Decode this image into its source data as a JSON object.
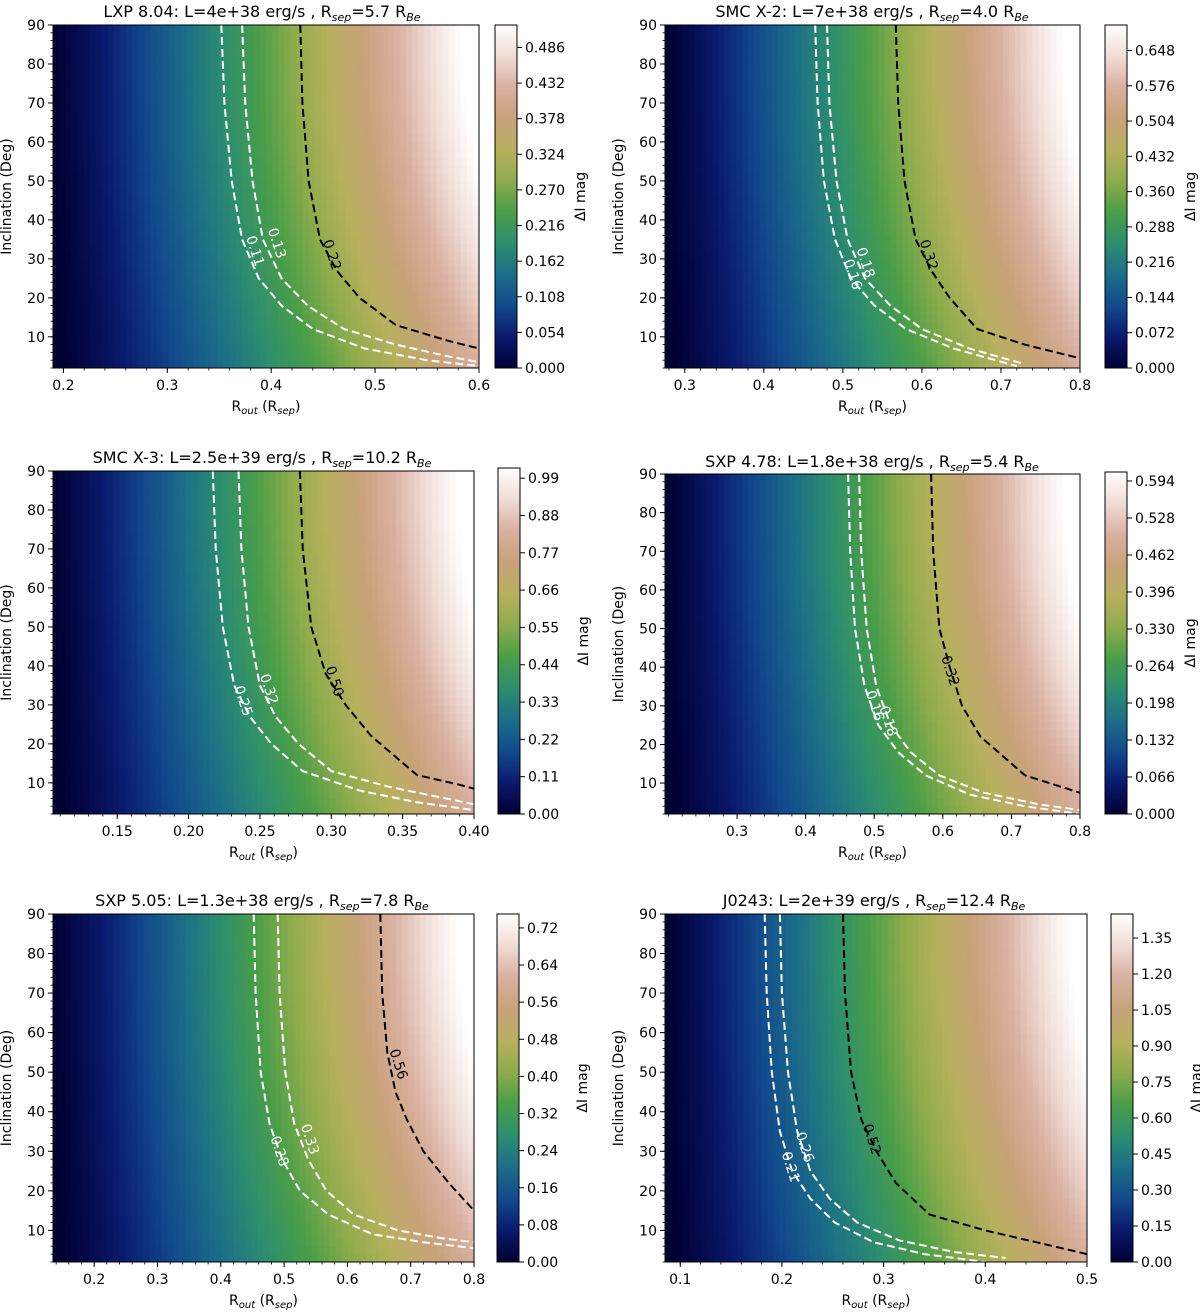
{
  "colorbar_label": "ΔI mag",
  "ylabel": "Inclination (Deg)",
  "xlabel_parts": {
    "main": "R",
    "sub": "out",
    "mid": " (R",
    "sub2": "sep",
    "end": ")"
  },
  "colors": {
    "colormap": [
      "#000033",
      "#0a1a6e",
      "#124a8c",
      "#1c6e88",
      "#2d8e6e",
      "#4a9e48",
      "#8eac4c",
      "#b8b05e",
      "#c8a27a",
      "#d9b0a0",
      "#f0dcd6",
      "#ffffff"
    ],
    "contour_white": "#ffffff",
    "contour_black": "#000000"
  },
  "chart_data": [
    {
      "type": "heatmap",
      "title": {
        "prefix": "LXP 8.04: L=4e+38 erg/s , R",
        "sub1": "sep",
        "mid": "=5.7 R",
        "sub2": "Be"
      },
      "xlim": [
        0.19,
        0.6
      ],
      "ylim": [
        2,
        90
      ],
      "xticks": [
        "0.2",
        "0.3",
        "0.4",
        "0.5",
        "0.6"
      ],
      "yticks": [
        "10",
        "20",
        "30",
        "40",
        "50",
        "60",
        "70",
        "80",
        "90"
      ],
      "zmax": 0.52,
      "cbar_ticks": [
        "0.000",
        "0.054",
        "0.108",
        "0.162",
        "0.216",
        "0.270",
        "0.324",
        "0.378",
        "0.432",
        "0.486"
      ],
      "contours": [
        {
          "label": "0.11",
          "color": "white",
          "x": [
            0.352,
            0.355,
            0.362,
            0.372,
            0.388,
            0.41,
            0.44,
            0.49,
            0.55,
            0.6
          ],
          "y": [
            90,
            70,
            50,
            35,
            25,
            18,
            12,
            7,
            4,
            2.5
          ],
          "label_at": [
            0.384,
            32
          ]
        },
        {
          "label": "0.13",
          "color": "white",
          "x": [
            0.372,
            0.375,
            0.382,
            0.392,
            0.41,
            0.435,
            0.47,
            0.52,
            0.57,
            0.6
          ],
          "y": [
            90,
            70,
            50,
            35,
            25,
            18,
            12,
            8,
            5,
            3.5
          ],
          "label_at": [
            0.405,
            34
          ]
        },
        {
          "label": "0.22",
          "color": "black",
          "x": [
            0.428,
            0.43,
            0.436,
            0.447,
            0.463,
            0.485,
            0.52,
            0.57,
            0.6
          ],
          "y": [
            90,
            70,
            50,
            35,
            27,
            20,
            13,
            9,
            7
          ],
          "label_at": [
            0.458,
            31
          ]
        }
      ]
    },
    {
      "type": "heatmap",
      "title": {
        "prefix": "SMC X-2: L=7e+38 erg/s , R",
        "sub1": "sep",
        "mid": "=4.0 R",
        "sub2": "Be"
      },
      "xlim": [
        0.275,
        0.8
      ],
      "ylim": [
        2,
        90
      ],
      "xticks": [
        "0.3",
        "0.4",
        "0.5",
        "0.6",
        "0.7",
        "0.8"
      ],
      "yticks": [
        "10",
        "20",
        "30",
        "40",
        "50",
        "60",
        "70",
        "80",
        "90"
      ],
      "zmax": 0.7,
      "cbar_ticks": [
        "0.000",
        "0.072",
        "0.144",
        "0.216",
        "0.288",
        "0.360",
        "0.432",
        "0.504",
        "0.576",
        "0.648"
      ],
      "contours": [
        {
          "label": "0.16",
          "color": "white",
          "x": [
            0.465,
            0.468,
            0.476,
            0.49,
            0.51,
            0.54,
            0.58,
            0.64,
            0.72
          ],
          "y": [
            90,
            70,
            50,
            35,
            25,
            18,
            12,
            7,
            2.5
          ],
          "label_at": [
            0.512,
            26
          ]
        },
        {
          "label": "0.18",
          "color": "white",
          "x": [
            0.48,
            0.483,
            0.492,
            0.506,
            0.528,
            0.56,
            0.6,
            0.66,
            0.73
          ],
          "y": [
            90,
            70,
            50,
            35,
            25,
            18,
            12,
            7,
            3
          ],
          "label_at": [
            0.528,
            29
          ]
        },
        {
          "label": "0.32",
          "color": "black",
          "x": [
            0.567,
            0.57,
            0.578,
            0.592,
            0.612,
            0.635,
            0.67,
            0.73,
            0.8
          ],
          "y": [
            90,
            70,
            50,
            35,
            27,
            20,
            12,
            8,
            4.5
          ],
          "label_at": [
            0.608,
            31
          ]
        }
      ]
    },
    {
      "type": "heatmap",
      "title": {
        "prefix": "SMC X-3: L=2.5e+39 erg/s , R",
        "sub1": "sep",
        "mid": "=10.2 R",
        "sub2": "Be"
      },
      "xlim": [
        0.105,
        0.4
      ],
      "ylim": [
        2,
        90
      ],
      "xticks": [
        "0.15",
        "0.20",
        "0.25",
        "0.30",
        "0.35",
        "0.40"
      ],
      "yticks": [
        "10",
        "20",
        "30",
        "40",
        "50",
        "60",
        "70",
        "80",
        "90"
      ],
      "zmax": 1.02,
      "cbar_ticks": [
        "0.00",
        "0.11",
        "0.22",
        "0.33",
        "0.44",
        "0.55",
        "0.66",
        "0.77",
        "0.88",
        "0.99"
      ],
      "contours": [
        {
          "label": "0.25",
          "color": "white",
          "x": [
            0.217,
            0.219,
            0.224,
            0.232,
            0.243,
            0.258,
            0.28,
            0.32,
            0.36,
            0.4
          ],
          "y": [
            90,
            70,
            50,
            35,
            27,
            20,
            13,
            8,
            5,
            3
          ],
          "label_at": [
            0.238,
            31
          ]
        },
        {
          "label": "0.32",
          "color": "white",
          "x": [
            0.235,
            0.237,
            0.242,
            0.25,
            0.261,
            0.277,
            0.3,
            0.34,
            0.38,
            0.4
          ],
          "y": [
            90,
            70,
            50,
            35,
            27,
            20,
            13,
            9,
            6,
            4.5
          ],
          "label_at": [
            0.256,
            34
          ]
        },
        {
          "label": "0.50",
          "color": "black",
          "x": [
            0.278,
            0.28,
            0.286,
            0.296,
            0.31,
            0.328,
            0.36,
            0.39,
            0.4
          ],
          "y": [
            90,
            70,
            50,
            38,
            30,
            22,
            12,
            9.5,
            8.5
          ],
          "label_at": [
            0.302,
            36
          ]
        }
      ]
    },
    {
      "type": "heatmap",
      "title": {
        "prefix": "SXP 4.78: L=1.8e+38 erg/s , R",
        "sub1": "sep",
        "mid": "=5.4 R",
        "sub2": "Be"
      },
      "xlim": [
        0.195,
        0.8
      ],
      "ylim": [
        2,
        90
      ],
      "xticks": [
        "0.3",
        "0.4",
        "0.5",
        "0.6",
        "0.7",
        "0.8"
      ],
      "yticks": [
        "10",
        "20",
        "30",
        "40",
        "50",
        "60",
        "70",
        "80",
        "90"
      ],
      "zmax": 0.61,
      "cbar_ticks": [
        "0.000",
        "0.066",
        "0.132",
        "0.198",
        "0.264",
        "0.330",
        "0.396",
        "0.462",
        "0.528",
        "0.594"
      ],
      "contours": [
        {
          "label": "0.16",
          "color": "white",
          "x": [
            0.462,
            0.465,
            0.472,
            0.486,
            0.506,
            0.535,
            0.575,
            0.64,
            0.72,
            0.8
          ],
          "y": [
            90,
            70,
            50,
            35,
            25,
            18,
            12,
            7,
            4,
            2
          ],
          "label_at": [
            0.5,
            30
          ]
        },
        {
          "label": "0.18",
          "color": "white",
          "x": [
            0.478,
            0.481,
            0.489,
            0.503,
            0.524,
            0.553,
            0.595,
            0.66,
            0.74,
            0.8
          ],
          "y": [
            90,
            70,
            50,
            35,
            25,
            18,
            12,
            7.5,
            4.5,
            3
          ],
          "label_at": [
            0.52,
            26
          ]
        },
        {
          "label": "0.32",
          "color": "black",
          "x": [
            0.583,
            0.586,
            0.595,
            0.61,
            0.628,
            0.655,
            0.72,
            0.8
          ],
          "y": [
            90,
            70,
            50,
            40,
            30,
            22,
            12,
            7.5
          ],
          "label_at": [
            0.61,
            39
          ]
        }
      ]
    },
    {
      "type": "heatmap",
      "title": {
        "prefix": "SXP 5.05: L=1.3e+38 erg/s , R",
        "sub1": "sep",
        "mid": "=7.8 R",
        "sub2": "Be"
      },
      "xlim": [
        0.135,
        0.8
      ],
      "ylim": [
        2,
        90
      ],
      "xticks": [
        "0.2",
        "0.3",
        "0.4",
        "0.5",
        "0.6",
        "0.7",
        "0.8"
      ],
      "yticks": [
        "10",
        "20",
        "30",
        "40",
        "50",
        "60",
        "70",
        "80",
        "90"
      ],
      "zmax": 0.75,
      "cbar_ticks": [
        "0.00",
        "0.08",
        "0.16",
        "0.24",
        "0.32",
        "0.40",
        "0.48",
        "0.56",
        "0.64",
        "0.72"
      ],
      "contours": [
        {
          "label": "0.28",
          "color": "white",
          "x": [
            0.452,
            0.455,
            0.463,
            0.477,
            0.497,
            0.525,
            0.57,
            0.64,
            0.72,
            0.8
          ],
          "y": [
            90,
            70,
            50,
            37,
            28,
            20,
            14,
            9,
            7,
            5.5
          ],
          "label_at": [
            0.492,
            30
          ]
        },
        {
          "label": "0.33",
          "color": "white",
          "x": [
            0.49,
            0.493,
            0.502,
            0.516,
            0.538,
            0.567,
            0.61,
            0.68,
            0.75,
            0.8
          ],
          "y": [
            90,
            70,
            50,
            37,
            28,
            20,
            14,
            10,
            8,
            7
          ],
          "label_at": [
            0.54,
            33
          ]
        },
        {
          "label": "0.56",
          "color": "black",
          "x": [
            0.652,
            0.655,
            0.663,
            0.676,
            0.694,
            0.72,
            0.76,
            0.8
          ],
          "y": [
            90,
            70,
            55,
            45,
            38,
            30,
            22,
            15
          ],
          "label_at": [
            0.68,
            52
          ]
        }
      ]
    },
    {
      "type": "heatmap",
      "title": {
        "prefix": "J0243: L=2e+39 erg/s , R",
        "sub1": "sep",
        "mid": "=12.4 R",
        "sub2": "Be"
      },
      "xlim": [
        0.085,
        0.5
      ],
      "ylim": [
        2,
        90
      ],
      "xticks": [
        "0.1",
        "0.2",
        "0.3",
        "0.4",
        "0.5"
      ],
      "yticks": [
        "10",
        "20",
        "30",
        "40",
        "50",
        "60",
        "70",
        "80",
        "90"
      ],
      "zmax": 1.45,
      "cbar_ticks": [
        "0.00",
        "0.15",
        "0.30",
        "0.45",
        "0.60",
        "0.75",
        "0.90",
        "1.05",
        "1.20",
        "1.35"
      ],
      "contours": [
        {
          "label": "0.21",
          "color": "white",
          "x": [
            0.183,
            0.185,
            0.19,
            0.198,
            0.21,
            0.228,
            0.252,
            0.29,
            0.34,
            0.4
          ],
          "y": [
            90,
            70,
            50,
            35,
            25,
            18,
            12,
            7,
            4,
            2
          ],
          "label_at": [
            0.208,
            26
          ]
        },
        {
          "label": "0.26",
          "color": "white",
          "x": [
            0.198,
            0.2,
            0.206,
            0.215,
            0.228,
            0.247,
            0.274,
            0.315,
            0.37,
            0.42
          ],
          "y": [
            90,
            70,
            50,
            35,
            25,
            18,
            12,
            7.5,
            4.5,
            3
          ],
          "label_at": [
            0.222,
            31
          ]
        },
        {
          "label": "0.52",
          "color": "black",
          "x": [
            0.26,
            0.262,
            0.268,
            0.278,
            0.293,
            0.312,
            0.345,
            0.4,
            0.45,
            0.5
          ],
          "y": [
            90,
            70,
            50,
            38,
            30,
            22,
            14,
            10,
            7,
            4
          ],
          "label_at": [
            0.288,
            33
          ]
        }
      ]
    }
  ]
}
